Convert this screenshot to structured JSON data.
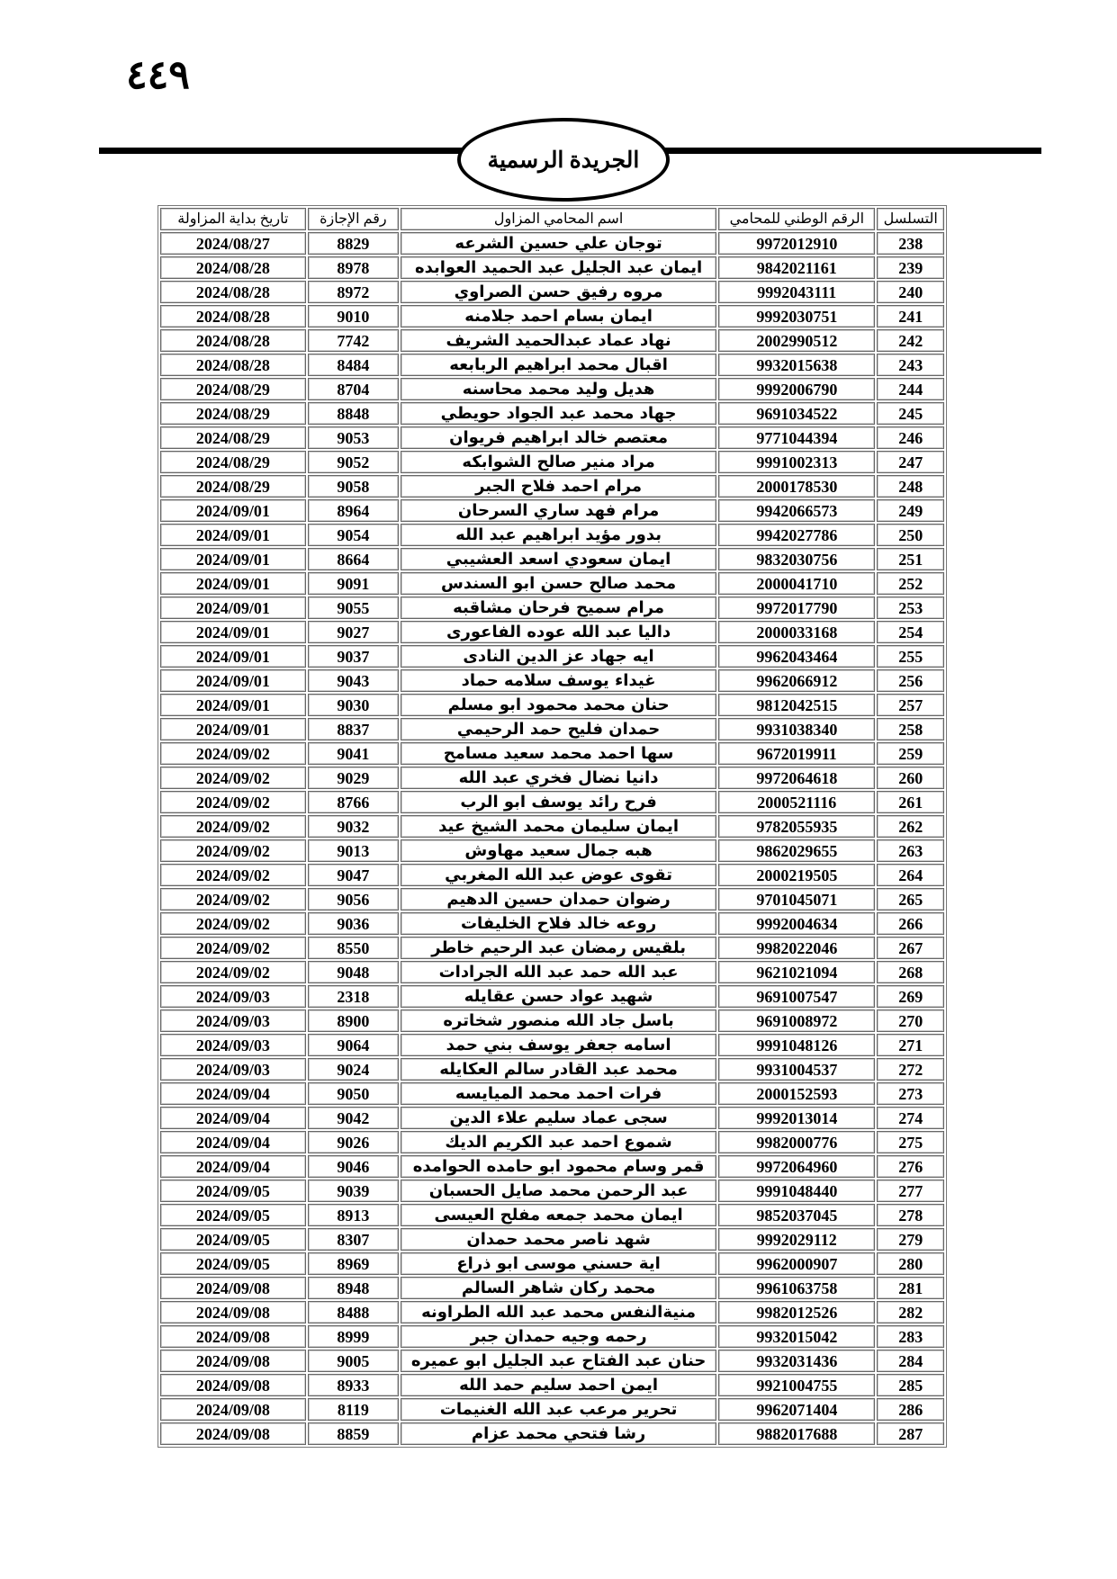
{
  "page_number": "٤٤٩",
  "header": {
    "title": "الجريدة الرسمية"
  },
  "table": {
    "columns": [
      "التسلسل",
      "الرقم الوطني للمحامي",
      "اسم المحامي المزاول",
      "رقم الإجازة",
      "تاريخ بداية المزاولة"
    ],
    "rows": [
      [
        "238",
        "9972012910",
        "توجان علي حسين الشرعه",
        "8829",
        "2024/08/27"
      ],
      [
        "239",
        "9842021161",
        "ايمان عبد الجليل عبد الحميد العوابده",
        "8978",
        "2024/08/28"
      ],
      [
        "240",
        "9992043111",
        "مروه رفيق حسن الصراوي",
        "8972",
        "2024/08/28"
      ],
      [
        "241",
        "9992030751",
        "ايمان بسام احمد جلامنه",
        "9010",
        "2024/08/28"
      ],
      [
        "242",
        "2002990512",
        "نهاد عماد عبدالحميد الشريف",
        "7742",
        "2024/08/28"
      ],
      [
        "243",
        "9932015638",
        "اقبال محمد ابراهيم الربابعه",
        "8484",
        "2024/08/28"
      ],
      [
        "244",
        "9992006790",
        "هديل وليد محمد محاسنه",
        "8704",
        "2024/08/29"
      ],
      [
        "245",
        "9691034522",
        "جهاد محمد عبد الجواد حويطي",
        "8848",
        "2024/08/29"
      ],
      [
        "246",
        "9771044394",
        "معتصم خالد ابراهيم فريوان",
        "9053",
        "2024/08/29"
      ],
      [
        "247",
        "9991002313",
        "مراد منير صالح الشوابكه",
        "9052",
        "2024/08/29"
      ],
      [
        "248",
        "2000178530",
        "مرام احمد فلاح الجبر",
        "9058",
        "2024/08/29"
      ],
      [
        "249",
        "9942066573",
        "مرام فهد ساري السرحان",
        "8964",
        "2024/09/01"
      ],
      [
        "250",
        "9942027786",
        "بدور مؤيد ابراهيم عبد الله",
        "9054",
        "2024/09/01"
      ],
      [
        "251",
        "9832030756",
        "ايمان سعودي اسعد العشيبي",
        "8664",
        "2024/09/01"
      ],
      [
        "252",
        "2000041710",
        "محمد صالح حسن ابو السندس",
        "9091",
        "2024/09/01"
      ],
      [
        "253",
        "9972017790",
        "مرام سميح فرحان مشاقبه",
        "9055",
        "2024/09/01"
      ],
      [
        "254",
        "2000033168",
        "داليا عبد الله عوده الفاعورى",
        "9027",
        "2024/09/01"
      ],
      [
        "255",
        "9962043464",
        "ايه جهاد عز الدين النادى",
        "9037",
        "2024/09/01"
      ],
      [
        "256",
        "9962066912",
        "غيداء يوسف سلامه حماد",
        "9043",
        "2024/09/01"
      ],
      [
        "257",
        "9812042515",
        "حنان محمد محمود ابو مسلم",
        "9030",
        "2024/09/01"
      ],
      [
        "258",
        "9931038340",
        "حمدان فليح حمد الرحيمي",
        "8837",
        "2024/09/01"
      ],
      [
        "259",
        "9672019911",
        "سها احمد محمد سعيد مسامح",
        "9041",
        "2024/09/02"
      ],
      [
        "260",
        "9972064618",
        "دانيا نضال فخري عبد الله",
        "9029",
        "2024/09/02"
      ],
      [
        "261",
        "2000521116",
        "فرح رائد يوسف ابو الرب",
        "8766",
        "2024/09/02"
      ],
      [
        "262",
        "9782055935",
        "ايمان سليمان محمد الشيخ عيد",
        "9032",
        "2024/09/02"
      ],
      [
        "263",
        "9862029655",
        "هبه جمال سعيد مهاوش",
        "9013",
        "2024/09/02"
      ],
      [
        "264",
        "2000219505",
        "تقوى عوض عبد الله المغربي",
        "9047",
        "2024/09/02"
      ],
      [
        "265",
        "9701045071",
        "رضوان حمدان حسين الدهيم",
        "9056",
        "2024/09/02"
      ],
      [
        "266",
        "9992004634",
        "روعه خالد فلاح الخليفات",
        "9036",
        "2024/09/02"
      ],
      [
        "267",
        "9982022046",
        "بلقيس رمضان عبد الرحيم خاطر",
        "8550",
        "2024/09/02"
      ],
      [
        "268",
        "9621021094",
        "عبد الله حمد عبد الله الجرادات",
        "9048",
        "2024/09/02"
      ],
      [
        "269",
        "9691007547",
        "شهيد عواد حسن عقايله",
        "2318",
        "2024/09/03"
      ],
      [
        "270",
        "9691008972",
        "باسل جاد الله منصور شخاتره",
        "8900",
        "2024/09/03"
      ],
      [
        "271",
        "9991048126",
        "اسامه جعفر يوسف بني حمد",
        "9064",
        "2024/09/03"
      ],
      [
        "272",
        "9931004537",
        "محمد عبد القادر سالم العكايله",
        "9024",
        "2024/09/03"
      ],
      [
        "273",
        "2000152593",
        "فرات احمد محمد الميايسه",
        "9050",
        "2024/09/04"
      ],
      [
        "274",
        "9992013014",
        "سجى عماد سليم علاء الدين",
        "9042",
        "2024/09/04"
      ],
      [
        "275",
        "9982000776",
        "شموع احمد عبد الكريم الديك",
        "9026",
        "2024/09/04"
      ],
      [
        "276",
        "9972064960",
        "قمر وسام محمود ابو حامده الحوامده",
        "9046",
        "2024/09/04"
      ],
      [
        "277",
        "9991048440",
        "عبد الرحمن محمد صايل الحسبان",
        "9039",
        "2024/09/05"
      ],
      [
        "278",
        "9852037045",
        "ايمان محمد جمعه مفلح العيسى",
        "8913",
        "2024/09/05"
      ],
      [
        "279",
        "9992029112",
        "شهد ناصر محمد حمدان",
        "8307",
        "2024/09/05"
      ],
      [
        "280",
        "9962000907",
        "اية حسني موسى ابو ذراع",
        "8969",
        "2024/09/05"
      ],
      [
        "281",
        "9961063758",
        "محمد ركان شاهر السالم",
        "8948",
        "2024/09/08"
      ],
      [
        "282",
        "9982012526",
        "منيةالنفس محمد عبد الله الطراونه",
        "8488",
        "2024/09/08"
      ],
      [
        "283",
        "9932015042",
        "رحمه وجيه حمدان جبر",
        "8999",
        "2024/09/08"
      ],
      [
        "284",
        "9932031436",
        "حنان عبد الفتاح عبد الجليل ابو عميره",
        "9005",
        "2024/09/08"
      ],
      [
        "285",
        "9921004755",
        "ايمن احمد سليم حمد الله",
        "8933",
        "2024/09/08"
      ],
      [
        "286",
        "9962071404",
        "تحرير مرعب عبد الله الغنيمات",
        "8119",
        "2024/09/08"
      ],
      [
        "287",
        "9882017688",
        "رشا فتحي محمد عزام",
        "8859",
        "2024/09/08"
      ]
    ]
  }
}
